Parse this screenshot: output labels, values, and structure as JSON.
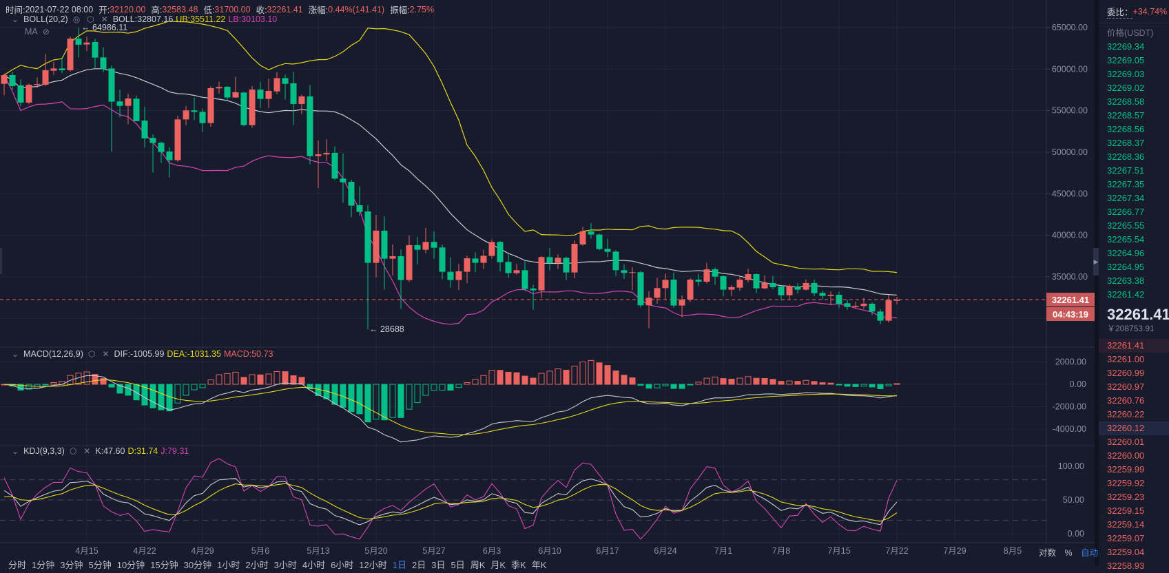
{
  "header": {
    "time_label": "时间:",
    "time": "2021-07-22 08:00",
    "open_label": "开:",
    "open": "32120.00",
    "high_label": "高:",
    "high": "32583.48",
    "low_label": "低:",
    "low": "31700.00",
    "close_label": "收:",
    "close": "32261.41",
    "change_label": "涨幅:",
    "change": "0.44%(141.41)",
    "amplitude_label": "振幅:",
    "amplitude": "2.75%"
  },
  "indicators": {
    "boll": {
      "name": "BOLL(20,2)",
      "mid": "BOLL:32807.16",
      "ub": "UB:35511.22",
      "lb": "LB:30103.10"
    },
    "ma": {
      "name": "MA"
    },
    "macd": {
      "name": "MACD(12,26,9)",
      "dif": "DIF:-1005.99",
      "dea": "DEA:-1031.35",
      "macd": "MACD:50.73"
    },
    "kdj": {
      "name": "KDJ(9,3,3)",
      "k": "K:47.60",
      "d": "D:31.74",
      "j": "J:79.31"
    }
  },
  "markers": {
    "high": "← 64986.11",
    "low": "← 28688"
  },
  "current_price_label": "32261.41",
  "countdown": "04:43:19",
  "colors": {
    "up": "#ec6461",
    "down": "#03c087",
    "ub": "#e6d71e",
    "lb": "#d844b8",
    "mid": "#c8c9d2",
    "bg": "#171b2b"
  },
  "chart_data": {
    "type": "candlestick",
    "start_date": "2021-04-05",
    "price_axis": {
      "ticks": [
        65000,
        60000,
        55000,
        50000,
        45000,
        40000,
        35000
      ],
      "labels": [
        "65000.00",
        "60000.00",
        "55000.00",
        "50000.00",
        "45000.00",
        "40000.00",
        "35000.00"
      ]
    },
    "macd_axis": {
      "ticks": [
        2000,
        0,
        -2000,
        -4000
      ],
      "labels": [
        "2000.00",
        "0.00",
        "-2000.00",
        "-4000.00"
      ]
    },
    "kdj_axis": {
      "ticks": [
        100,
        50,
        0
      ],
      "labels": [
        "100.00",
        "50.00",
        "0.00"
      ]
    },
    "x_ticks": [
      "4月15",
      "4月22",
      "4月29",
      "5月6",
      "5月13",
      "5月20",
      "5月27",
      "6月3",
      "6月10",
      "6月17",
      "6月24",
      "7月1",
      "7月8",
      "7月15",
      "7月22",
      "7月29",
      "8月5"
    ],
    "candles_ohlc": [
      [
        58230,
        59480,
        56850,
        59280
      ],
      [
        59280,
        59670,
        57540,
        57960
      ],
      [
        58040,
        58760,
        55550,
        55970
      ],
      [
        55970,
        58260,
        55770,
        58120
      ],
      [
        58100,
        58980,
        57740,
        58210
      ],
      [
        58120,
        61820,
        57980,
        59860
      ],
      [
        59810,
        60860,
        59310,
        60080
      ],
      [
        60080,
        61460,
        59530,
        59860
      ],
      [
        59860,
        63900,
        59700,
        63670
      ],
      [
        63670,
        64986.11,
        61410,
        62930
      ],
      [
        62960,
        63900,
        62180,
        63200
      ],
      [
        63260,
        63620,
        60140,
        61380
      ],
      [
        61410,
        62620,
        59640,
        60030
      ],
      [
        60080,
        60440,
        50080,
        56080
      ],
      [
        56110,
        57540,
        54230,
        55580
      ],
      [
        55580,
        57070,
        53370,
        56470
      ],
      [
        56440,
        56800,
        53730,
        53730
      ],
      [
        53810,
        55470,
        50550,
        51660
      ],
      [
        51710,
        52160,
        47570,
        51110
      ],
      [
        51130,
        51270,
        48700,
        50030
      ],
      [
        50090,
        50580,
        46960,
        49040
      ],
      [
        49040,
        54390,
        48840,
        53950
      ],
      [
        53950,
        55530,
        53260,
        55030
      ],
      [
        55030,
        56600,
        53870,
        54840
      ],
      [
        54860,
        55250,
        52380,
        53510
      ],
      [
        53510,
        57930,
        53070,
        57710
      ],
      [
        57680,
        58510,
        57070,
        57850
      ],
      [
        57870,
        57960,
        56160,
        56580
      ],
      [
        56580,
        59060,
        56550,
        57210
      ],
      [
        57180,
        57270,
        53120,
        53260
      ],
      [
        53260,
        57960,
        52930,
        57540
      ],
      [
        57540,
        58450,
        55330,
        56410
      ],
      [
        56410,
        58870,
        55330,
        57380
      ],
      [
        57320,
        59610,
        56990,
        58920
      ],
      [
        58920,
        59340,
        56350,
        58230
      ],
      [
        58290,
        59700,
        53290,
        55800
      ],
      [
        55800,
        56910,
        54590,
        56710
      ],
      [
        56710,
        58100,
        48540,
        49530
      ],
      [
        49530,
        51410,
        45670,
        49750
      ],
      [
        49730,
        51550,
        48930,
        49920
      ],
      [
        49920,
        50720,
        46660,
        46830
      ],
      [
        46830,
        49860,
        43900,
        46380
      ],
      [
        46440,
        46690,
        42190,
        43570
      ],
      [
        43620,
        45890,
        42350,
        42820
      ],
      [
        42870,
        43650,
        28688,
        36690
      ],
      [
        36690,
        42460,
        34950,
        40560
      ],
      [
        40560,
        42290,
        33460,
        37190
      ],
      [
        37190,
        38900,
        35170,
        37490
      ],
      [
        37490,
        38290,
        31160,
        34620
      ],
      [
        34620,
        39970,
        34400,
        38820
      ],
      [
        38820,
        39810,
        36500,
        38260
      ],
      [
        38260,
        40910,
        37850,
        39200
      ],
      [
        39200,
        40470,
        37190,
        38510
      ],
      [
        38540,
        38900,
        34730,
        35610
      ],
      [
        35610,
        37380,
        33730,
        34620
      ],
      [
        34620,
        36550,
        33400,
        35670
      ],
      [
        35610,
        37540,
        34230,
        37240
      ],
      [
        37210,
        37930,
        35560,
        36690
      ],
      [
        36690,
        38260,
        35940,
        37540
      ],
      [
        37520,
        39510,
        37210,
        39200
      ],
      [
        39200,
        39310,
        35640,
        36770
      ],
      [
        36800,
        37850,
        34890,
        35450
      ],
      [
        35450,
        36550,
        35250,
        35800
      ],
      [
        35800,
        36880,
        33290,
        33540
      ],
      [
        33600,
        34070,
        31030,
        33380
      ],
      [
        33380,
        37520,
        32460,
        37380
      ],
      [
        37380,
        38480,
        35800,
        36690
      ],
      [
        36690,
        37710,
        35940,
        37290
      ],
      [
        37290,
        37430,
        34620,
        35530
      ],
      [
        35530,
        39370,
        34810,
        38980
      ],
      [
        38900,
        41020,
        38760,
        40470
      ],
      [
        40470,
        41440,
        39590,
        40090
      ],
      [
        40090,
        40200,
        38180,
        38350
      ],
      [
        38370,
        39590,
        37380,
        38010
      ],
      [
        38040,
        38210,
        35110,
        35800
      ],
      [
        35800,
        36490,
        34750,
        35470
      ],
      [
        35470,
        36140,
        33370,
        35560
      ],
      [
        35560,
        35720,
        31300,
        31580
      ],
      [
        31580,
        33290,
        28820,
        32490
      ],
      [
        32490,
        34890,
        31770,
        33650
      ],
      [
        33650,
        35420,
        32270,
        34640
      ],
      [
        34670,
        35530,
        31300,
        31550
      ],
      [
        31550,
        32760,
        30170,
        32270
      ],
      [
        32270,
        34840,
        31990,
        34670
      ],
      [
        34670,
        35360,
        33870,
        34420
      ],
      [
        34420,
        36690,
        34200,
        35910
      ],
      [
        35910,
        36130,
        34060,
        35030
      ],
      [
        35090,
        35170,
        32680,
        33460
      ],
      [
        33460,
        34010,
        32680,
        33760
      ],
      [
        33700,
        34950,
        33290,
        34670
      ],
      [
        34620,
        35990,
        34340,
        35330
      ],
      [
        35330,
        35390,
        33040,
        33620
      ],
      [
        33620,
        35170,
        33510,
        34260
      ],
      [
        34260,
        35110,
        33510,
        33760
      ],
      [
        33840,
        33920,
        32130,
        32790
      ],
      [
        32790,
        34120,
        32270,
        33900
      ],
      [
        33810,
        34280,
        33010,
        33460
      ],
      [
        33460,
        34670,
        33340,
        34260
      ],
      [
        34260,
        34670,
        32680,
        33040
      ],
      [
        33070,
        33340,
        32270,
        32710
      ],
      [
        32710,
        33240,
        31580,
        32850
      ],
      [
        32850,
        33210,
        31220,
        31770
      ],
      [
        31830,
        32270,
        31030,
        31380
      ],
      [
        31380,
        31990,
        31220,
        31520
      ],
      [
        31490,
        32460,
        31140,
        31770
      ],
      [
        31770,
        31910,
        30390,
        30830
      ],
      [
        30830,
        31110,
        29280,
        29730
      ],
      [
        29730,
        32870,
        29510,
        32210
      ],
      [
        32120,
        32583.48,
        31700,
        32261.41
      ]
    ]
  },
  "scale_buttons": [
    "对数",
    "%",
    "自动"
  ],
  "toolbar": {
    "intervals": [
      "分时",
      "1分钟",
      "3分钟",
      "5分钟",
      "10分钟",
      "15分钟",
      "30分钟",
      "1小时",
      "2小时",
      "3小时",
      "4小时",
      "6小时",
      "12小时",
      "1日",
      "2日",
      "3日",
      "5日",
      "周K",
      "月K",
      "季K",
      "年K"
    ],
    "active": "1日"
  },
  "orderbook": {
    "ratio_label": "委比：",
    "ratio": "+34.74%",
    "price_header": "价格(USDT)",
    "asks": [
      "32269.34",
      "32269.05",
      "32269.03",
      "32269.02",
      "32268.58",
      "32268.57",
      "32268.56",
      "32268.37",
      "32268.36",
      "32267.51",
      "32267.35",
      "32267.34",
      "32266.77",
      "32265.55",
      "32265.54",
      "32264.96",
      "32264.95",
      "32263.38",
      "32261.42"
    ],
    "last_price": "32261.41",
    "last_price_cny": "￥208753.91",
    "bids": [
      "32261.41",
      "32261.00",
      "32260.99",
      "32260.97",
      "32260.76",
      "32260.22",
      "32260.12",
      "32260.01",
      "32260.00",
      "32259.99",
      "32259.92",
      "32259.23",
      "32259.15",
      "32259.14",
      "32259.07",
      "32259.04",
      "32258.93"
    ]
  }
}
